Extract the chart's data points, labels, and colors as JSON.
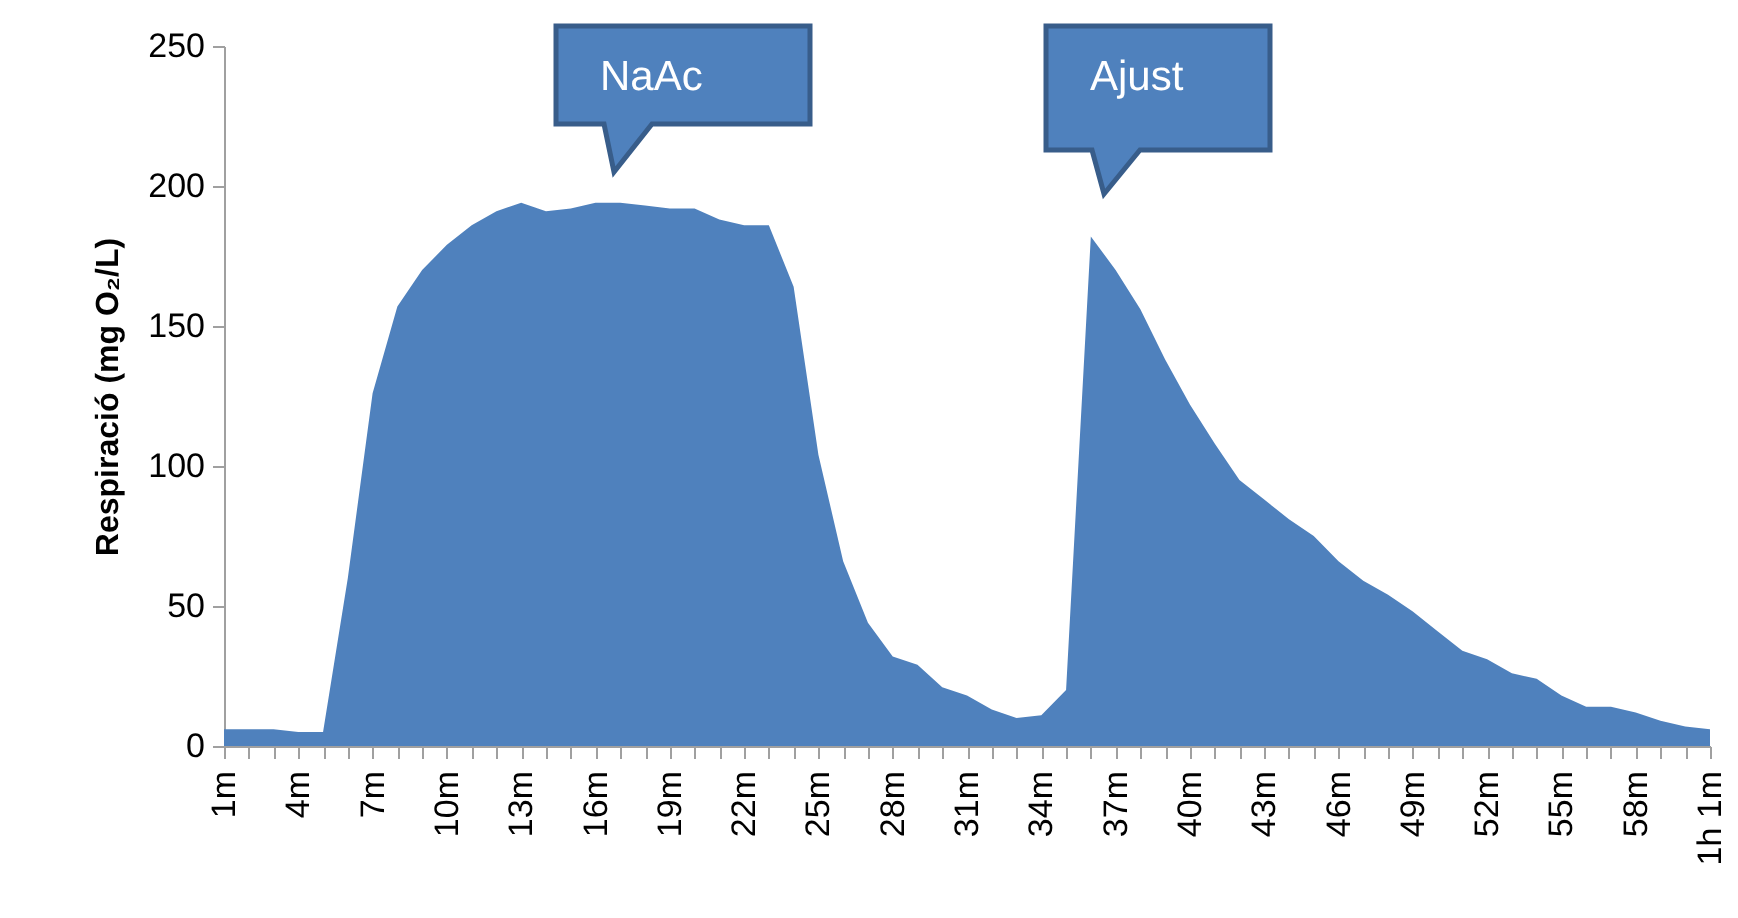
{
  "chart_data": {
    "type": "area",
    "ylabel": "Respiració (mg O₂/L)",
    "categories": [
      "1m",
      null,
      null,
      "4m",
      null,
      null,
      "7m",
      null,
      null,
      "10m",
      null,
      null,
      "13m",
      null,
      null,
      "16m",
      null,
      null,
      "19m",
      null,
      null,
      "22m",
      null,
      null,
      "25m",
      null,
      null,
      "28m",
      null,
      null,
      "31m",
      null,
      null,
      "34m",
      null,
      null,
      "37m",
      null,
      null,
      "40m",
      null,
      null,
      "43m",
      null,
      null,
      "46m",
      null,
      null,
      "49m",
      null,
      null,
      "52m",
      null,
      null,
      "55m",
      null,
      null,
      "58m",
      null,
      null,
      "1h 1m"
    ],
    "series": [
      {
        "color": "#4f81bd",
        "values": [
          6,
          6,
          6,
          5,
          5,
          60,
          126,
          157,
          170,
          179,
          186,
          191,
          194,
          191,
          192,
          194,
          194,
          193,
          192,
          192,
          188,
          186,
          186,
          164,
          104,
          66,
          44,
          32,
          29,
          21,
          18,
          13,
          10,
          11,
          20,
          182,
          170,
          156,
          138,
          122,
          108,
          95,
          88,
          81,
          75,
          66,
          59,
          54,
          48,
          41,
          34,
          31,
          26,
          24,
          18,
          14,
          14,
          12,
          9,
          7,
          6
        ]
      }
    ],
    "ylim": [
      0,
      250
    ],
    "yticks": [
      0,
      50,
      100,
      150,
      200,
      250
    ],
    "grid": false,
    "annotations": [
      "NaAc",
      "Ajust"
    ]
  }
}
